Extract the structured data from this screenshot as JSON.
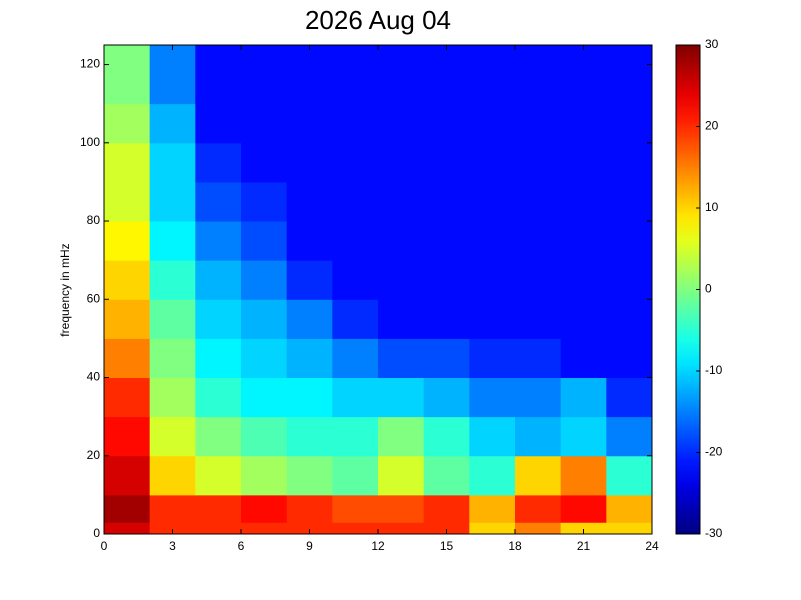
{
  "chart_data": {
    "type": "heatmap",
    "title": "2026 Aug 04",
    "y_label": "frequency in mHz",
    "xbins": [
      0,
      2,
      4,
      6,
      8,
      10,
      12,
      14,
      16,
      18,
      20,
      22,
      24
    ],
    "ybins": [
      0,
      3,
      10,
      20,
      30,
      40,
      50,
      60,
      70,
      80,
      90,
      100,
      110,
      125
    ],
    "values": [
      [
        25,
        20,
        20,
        20,
        20,
        20,
        20,
        20,
        10,
        15,
        10,
        10
      ],
      [
        28,
        20,
        20,
        22,
        20,
        18,
        18,
        20,
        12,
        20,
        22,
        12
      ],
      [
        25,
        10,
        5,
        2,
        0,
        -2,
        5,
        -2,
        -5,
        10,
        15,
        -5
      ],
      [
        22,
        5,
        0,
        -3,
        -5,
        -5,
        0,
        -5,
        -10,
        -12,
        -10,
        -15
      ],
      [
        20,
        2,
        -5,
        -8,
        -8,
        -10,
        -10,
        -12,
        -15,
        -15,
        -12,
        -20
      ],
      [
        15,
        0,
        -8,
        -10,
        -12,
        -15,
        -18,
        -18,
        -20,
        -20,
        -22,
        -22
      ],
      [
        12,
        -2,
        -10,
        -12,
        -15,
        -20,
        -22,
        -22,
        -22,
        -22,
        -22,
        -22
      ],
      [
        10,
        -5,
        -12,
        -15,
        -20,
        -22,
        -22,
        -22,
        -22,
        -22,
        -22,
        -22
      ],
      [
        8,
        -8,
        -15,
        -18,
        -22,
        -22,
        -22,
        -22,
        -22,
        -22,
        -22,
        -22
      ],
      [
        5,
        -10,
        -18,
        -20,
        -22,
        -22,
        -22,
        -22,
        -22,
        -22,
        -22,
        -22
      ],
      [
        5,
        -10,
        -20,
        -22,
        -22,
        -22,
        -22,
        -22,
        -22,
        -22,
        -22,
        -22
      ],
      [
        2,
        -12,
        -22,
        -22,
        -22,
        -22,
        -22,
        -22,
        -22,
        -22,
        -22,
        -22
      ],
      [
        0,
        -15,
        -22,
        -22,
        -22,
        -22,
        -22,
        -22,
        -22,
        -22,
        -22,
        -22
      ]
    ],
    "xlim": [
      0,
      24
    ],
    "xticks": [
      0,
      3,
      6,
      9,
      12,
      15,
      18,
      21,
      24
    ],
    "ylim": [
      0,
      125
    ],
    "yticks": [
      0,
      20,
      40,
      60,
      80,
      100,
      120
    ],
    "clim": [
      -30,
      30
    ],
    "cticks": [
      -30,
      -20,
      -10,
      0,
      10,
      20,
      30
    ],
    "colormap": "jet"
  }
}
